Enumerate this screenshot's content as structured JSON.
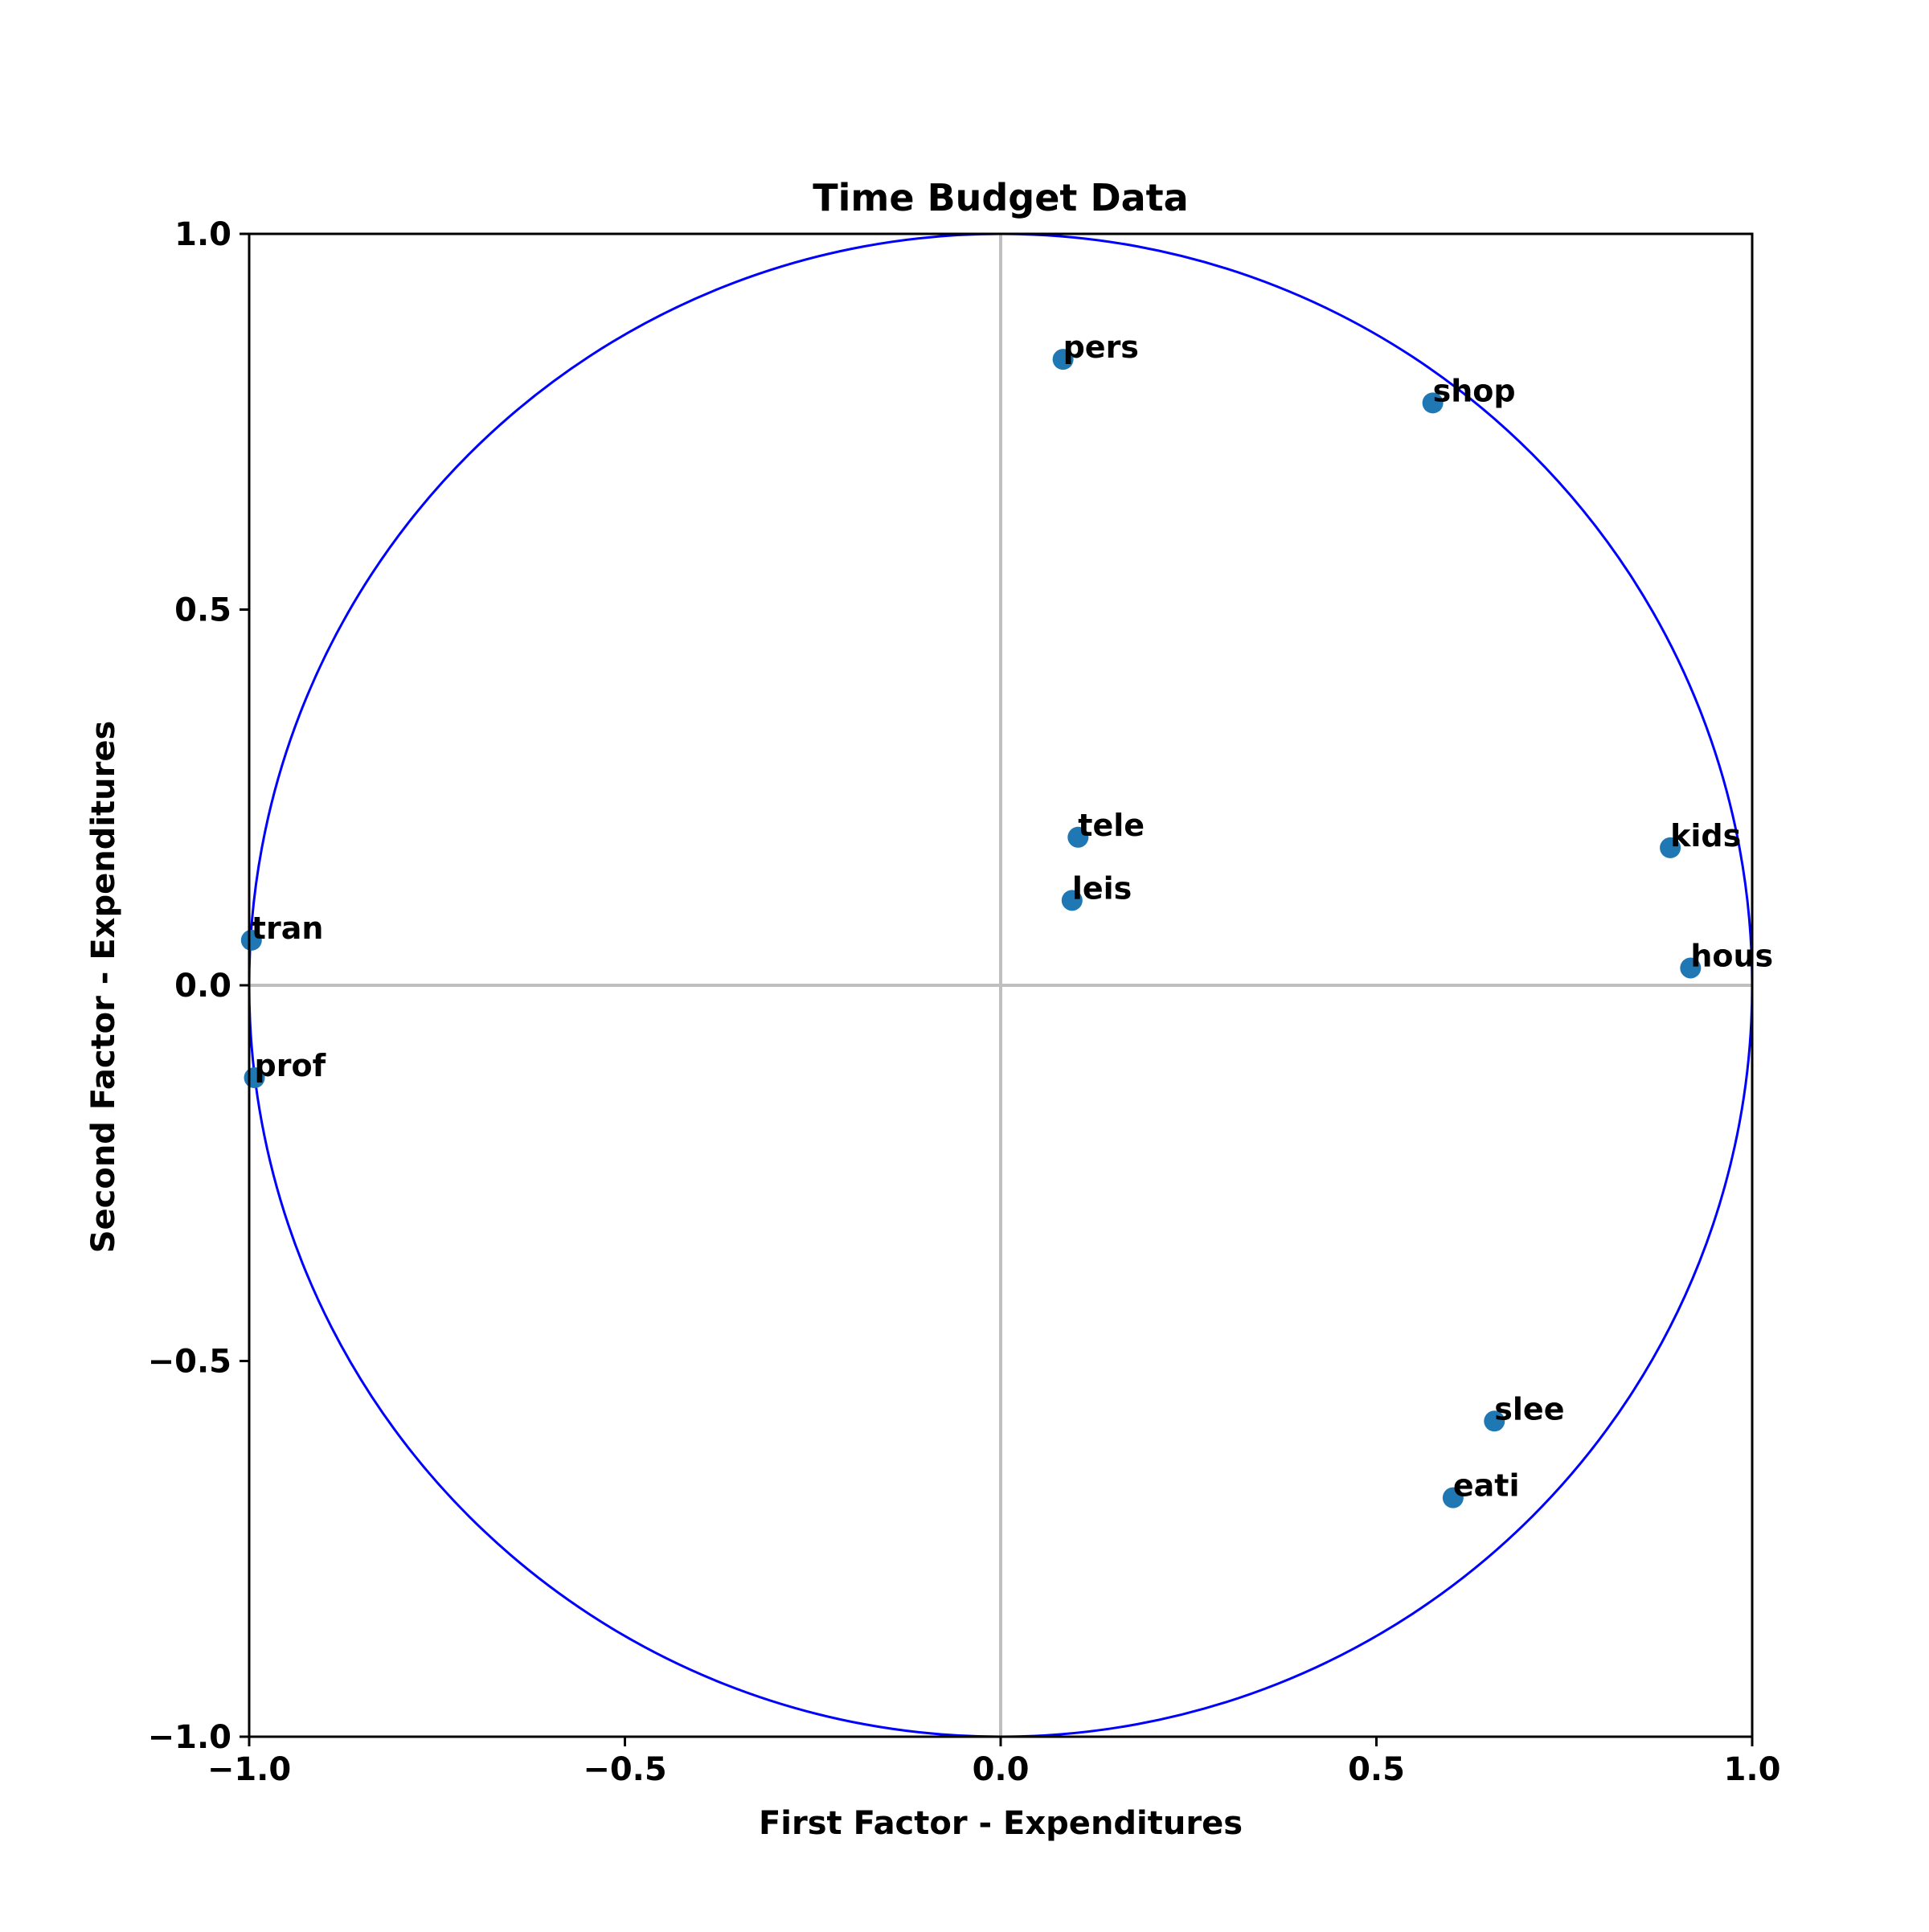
{
  "chart_data": {
    "type": "scatter",
    "title": "Time Budget Data",
    "xlabel": "First Factor - Expenditures",
    "ylabel": "Second Factor - Expenditures",
    "xlim": [
      -1.0,
      1.0
    ],
    "ylim": [
      -1.0,
      1.0
    ],
    "xticks": [
      -1.0,
      -0.5,
      0.0,
      0.5,
      1.0
    ],
    "yticks": [
      -1.0,
      -0.5,
      0.0,
      0.5,
      1.0
    ],
    "xtick_labels": [
      "−1.0",
      "−0.5",
      "0.0",
      "0.5",
      "1.0"
    ],
    "ytick_labels": [
      "−1.0",
      "−0.5",
      "0.0",
      "0.5",
      "1.0"
    ],
    "grid": false,
    "reference_lines": {
      "x": 0.0,
      "y": 0.0,
      "color": "#bfbfbf"
    },
    "unit_circle": {
      "radius": 1.0,
      "color": "#0000ff"
    },
    "point_color": "#1f77b4",
    "points": [
      {
        "label": "pers",
        "x": 0.083,
        "y": 0.833
      },
      {
        "label": "shop",
        "x": 0.575,
        "y": 0.775
      },
      {
        "label": "tele",
        "x": 0.103,
        "y": 0.197
      },
      {
        "label": "kids",
        "x": 0.891,
        "y": 0.183
      },
      {
        "label": "leis",
        "x": 0.095,
        "y": 0.113
      },
      {
        "label": "tran",
        "x": -0.997,
        "y": 0.06
      },
      {
        "label": "hous",
        "x": 0.918,
        "y": 0.023
      },
      {
        "label": "prof",
        "x": -0.993,
        "y": -0.123
      },
      {
        "label": "slee",
        "x": 0.657,
        "y": -0.58
      },
      {
        "label": "eati",
        "x": 0.602,
        "y": -0.682
      }
    ]
  }
}
